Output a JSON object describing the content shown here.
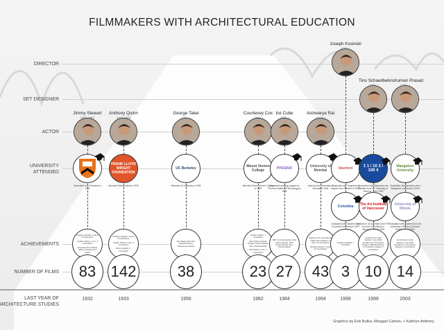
{
  "title": "FILMMAKERS WITH ARCHITECTURAL EDUCATION",
  "row_labels": {
    "director": "DIRECTOR",
    "set_designer": "SET DESIGNER",
    "actor": "ACTOR",
    "university": "UNIVERSITY ATTENDED",
    "achievements": "ACHIEVEMENTS",
    "films": "NUMBER OF FILMS",
    "last_year": "LAST YEAR OF ARCHITECTURE STUDIES"
  },
  "people": [
    {
      "name": "Jimmy Stewart",
      "years": "(1908-1997)",
      "role": "actor",
      "school": "Princeton",
      "school_color": "#e8731c",
      "education": [
        "Graduated from Princeton in 1932"
      ],
      "achievements": [
        "Academy Awards: 2 wins, 5 nominations",
        "Golden Globes: 1 win, 3 nominations",
        "American Film Institute Lifetime Achievement Award"
      ],
      "films": "83",
      "year": "1932"
    },
    {
      "name": "Anthony Quinn",
      "years": "(1915-2001)",
      "role": "actor",
      "school": "FRANK LLOYD WRIGHT FOUNDATION",
      "school_color": "#e0552a",
      "education": [
        "Attended Taliesin West in 1933"
      ],
      "achievements": [
        "Academy Awards: 2 wins, 4 nominations",
        "Golden Globes: 1 win, 5 nominations",
        "Emmy Awards: 1 nomination"
      ],
      "films": "142",
      "year": "1933"
    },
    {
      "name": "George Takei",
      "years": "(1937- )",
      "role": "actor",
      "school": "UC Berkeley",
      "school_color": "#2b3f6e",
      "education": [
        "Attended UC Berkeley in 1956"
      ],
      "achievements": [
        "San Diego Asian Film Festival Lifetime Achievement Award"
      ],
      "films": "38",
      "year": "1956"
    },
    {
      "name": "Courteney Cox",
      "years": "(1964- )",
      "role": "actor",
      "school": "Mount Vernon College",
      "school_color": "#444444",
      "education": [
        "Attended Mount Vernon College in 1982"
      ],
      "achievements": [
        "Golden Globes: 1 nomination",
        "Kids Choice Awards, Peoples Choice Awards, Teen Choice Awards",
        "SAG Award: 1 win, 7 nominations"
      ],
      "films": "23",
      "year": "1982"
    },
    {
      "name": "Ice Cube",
      "years": "(1969- )",
      "role": "actor",
      "school": "PHOENIX",
      "school_color": "#8a5cc0",
      "education": [
        "Graduated drafting program at Phoenix Institute of Technology in 1984"
      ],
      "achievements": [
        "BET Comedy Awards, Kids Choice Awards, MTV Movie Awards, Teen Choice Awards"
      ],
      "films": "27",
      "year": "1984"
    },
    {
      "name": "Aishwarya Rai",
      "years": "(1973- )",
      "role": "actor",
      "school": "University of Mumbai",
      "school_color": "#555555",
      "education": [
        "Attended the University of Mumbai in 1994"
      ],
      "achievements": [
        "Awards of the International Indian Film Academy: 2 wins, 11 nominations",
        "Filmfare Awards: 2 wins, 10 nominations"
      ],
      "films": "43",
      "year": "1994"
    },
    {
      "name": "Joseph Kosinski",
      "years": "(1974- )",
      "role": "director",
      "school": "Stanford",
      "school_color": "#c0565a",
      "school2": "Columbia",
      "school2_color": "#2a5aa0",
      "education": [
        "Graduated with Engineering degree from Stanford in 1996",
        "Graduated with Masters from Columbia University in 1999"
      ],
      "achievements": [
        "Academy Awards: 1 nomination"
      ],
      "films": "3",
      "year": "1999"
    },
    {
      "name": "Tino Schaedler",
      "years": "(1973- )",
      "role": "set_designer",
      "school": "1 1 / 10 2 / 100 4",
      "school_color": "#1a4a9c",
      "school2": "The Art Institute of Vancouver",
      "school2_color": "#d0101a",
      "education": [
        "Graduated with Bachelors and Masters from the University of Hanover, 1991-1999",
        "Diploma in 3D animation and VFX from the Art Institute in Vancouver, BC in 2003"
      ],
      "achievements": [
        "Art Director's Guild Awards: 1 win (2011 Excellence in Production Design), 2009 Excellence in Production Design, 2 nominations"
      ],
      "films": "10",
      "year": "1999"
    },
    {
      "name": "Anshuman Prasad",
      "years": "(1976- )",
      "role": "set_designer",
      "school": "Mangalore University",
      "school_color": "#5a8a3a",
      "school2": "University of Illinois",
      "school2_color": "#8a88c0",
      "education": [
        "Graduated with Bachelors from Mangalore University in 2000",
        "Graduated with Masters from the University of Illinois at Urbana-Champaign in 2003"
      ],
      "achievements": [
        "Art Director's Guild Awards: 1 win (2011 Excellence in Production Design), 2 nominations"
      ],
      "films": "14",
      "year": "2003"
    }
  ],
  "credit": "Graphics by Erik Butka, Meagan Calnon, + Kathryn Anthony"
}
